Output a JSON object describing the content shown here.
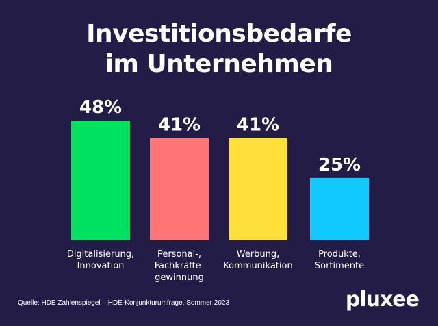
{
  "chart_data": {
    "type": "bar",
    "title_lines": [
      "Investitionsbedarfe",
      "im Unternehmen"
    ],
    "categories": [
      [
        "Digitalisierung,",
        "Innovation"
      ],
      [
        "Personal-,",
        "Fachkräfte-",
        "gewinnung"
      ],
      [
        "Werbung,",
        "Kommunikation"
      ],
      [
        "Produkte,",
        "Sortimente"
      ]
    ],
    "values": [
      48,
      41,
      41,
      25
    ],
    "value_labels": [
      "48%",
      "41%",
      "41%",
      "25%"
    ],
    "colors": [
      "#00e061",
      "#ff7576",
      "#ffe03a",
      "#12c9ff"
    ],
    "ylim": [
      0,
      48
    ],
    "grid": false,
    "legend": "none"
  },
  "footer": {
    "source": "Quelle: HDE Zahlenspiegel – HDE-Konjunkturumfrage, Sommer 2023",
    "logo": "pluxee"
  },
  "colors": {
    "background": "#221c46",
    "text": "#ffffff"
  }
}
